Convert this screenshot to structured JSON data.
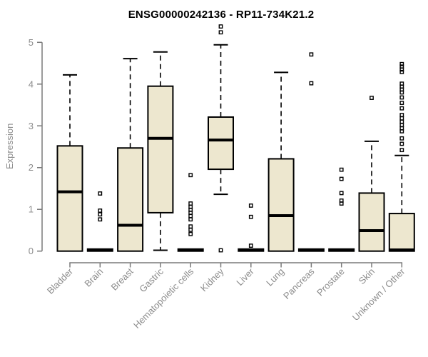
{
  "chart_data": {
    "type": "boxplot",
    "title": "ENSG00000242136 - RP11-734K21.2",
    "ylabel": "Expression",
    "xlabel": "",
    "ylim": [
      0,
      5.45
    ],
    "yticks": [
      0,
      1,
      2,
      3,
      4,
      5
    ],
    "grid": false,
    "legend": false,
    "categories": [
      "Bladder",
      "Brain",
      "Breast",
      "Gastric",
      "Hematopoietic cells",
      "Kidney",
      "Liver",
      "Lung",
      "Pancreas",
      "Prostate",
      "Skin",
      "Unknown / Other"
    ],
    "series": [
      {
        "name": "Bladder",
        "whisker_low": 0,
        "q1": 0,
        "median": 1.42,
        "q3": 2.52,
        "whisker_high": 4.22,
        "outliers": []
      },
      {
        "name": "Brain",
        "whisker_low": 0,
        "q1": 0,
        "median": 0.02,
        "q3": 0.05,
        "whisker_high": 0.05,
        "outliers": [
          1.38,
          0.97,
          0.88,
          0.76
        ]
      },
      {
        "name": "Breast",
        "whisker_low": 0,
        "q1": 0,
        "median": 0.62,
        "q3": 2.47,
        "whisker_high": 4.61,
        "outliers": []
      },
      {
        "name": "Gastric",
        "whisker_low": 0.02,
        "q1": 0.92,
        "median": 2.7,
        "q3": 3.95,
        "whisker_high": 4.77,
        "outliers": []
      },
      {
        "name": "Hematopoietic cells",
        "whisker_low": 0,
        "q1": 0,
        "median": 0.02,
        "q3": 0.05,
        "whisker_high": 0.05,
        "outliers": [
          1.82,
          1.14,
          1.06,
          0.99,
          0.92,
          0.84,
          0.76,
          0.59,
          0.51,
          0.41
        ]
      },
      {
        "name": "Kidney",
        "whisker_low": 1.36,
        "q1": 1.96,
        "median": 2.66,
        "q3": 3.21,
        "whisker_high": 4.94,
        "outliers": [
          5.38,
          5.24,
          0.02
        ]
      },
      {
        "name": "Liver",
        "whisker_low": 0,
        "q1": 0,
        "median": 0.02,
        "q3": 0.05,
        "whisker_high": 0.05,
        "outliers": [
          1.09,
          0.82,
          0.13
        ]
      },
      {
        "name": "Lung",
        "whisker_low": 0,
        "q1": 0,
        "median": 0.85,
        "q3": 2.21,
        "whisker_high": 4.28,
        "outliers": []
      },
      {
        "name": "Pancreas",
        "whisker_low": 0,
        "q1": 0,
        "median": 0.02,
        "q3": 0.05,
        "whisker_high": 0.05,
        "outliers": [
          4.71,
          4.02
        ]
      },
      {
        "name": "Prostate",
        "whisker_low": 0,
        "q1": 0,
        "median": 0.02,
        "q3": 0.05,
        "whisker_high": 0.05,
        "outliers": [
          1.95,
          1.73,
          1.39,
          1.21,
          1.14
        ]
      },
      {
        "name": "Skin",
        "whisker_low": 0,
        "q1": 0,
        "median": 0.49,
        "q3": 1.39,
        "whisker_high": 2.63,
        "outliers": [
          3.67
        ]
      },
      {
        "name": "Unknown / Other",
        "whisker_low": 0,
        "q1": 0,
        "median": 0.03,
        "q3": 0.9,
        "whisker_high": 2.29,
        "outliers": [
          4.48,
          4.42,
          4.35,
          4.29,
          4.01,
          3.94,
          3.87,
          3.8,
          3.68,
          3.55,
          3.42,
          3.26,
          3.18,
          3.1,
          3.02,
          2.94,
          2.87,
          2.7,
          2.57,
          2.42
        ]
      }
    ],
    "colors": {
      "box_fill": "#EDE7CF",
      "box_stroke": "#000000",
      "median": "#000000",
      "whisker": "#000000",
      "outlier": "#000000",
      "axis": "#7a7a7a",
      "text": "#8c8c8c",
      "title": "#000000",
      "background": "#ffffff"
    }
  }
}
